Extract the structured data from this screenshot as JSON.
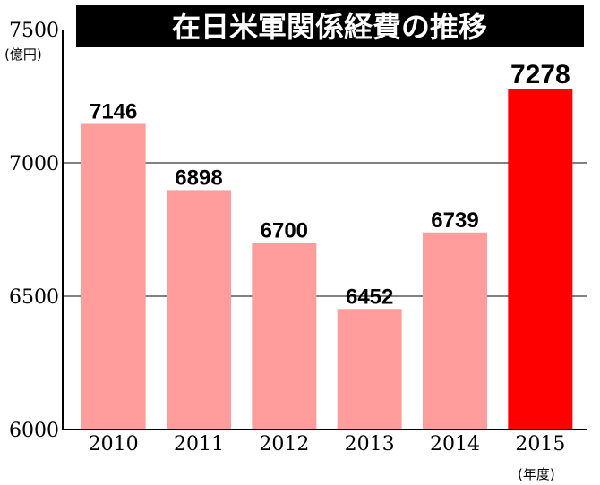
{
  "chart_data": {
    "type": "bar",
    "title": "在日米軍関係経費の推移",
    "ylabel": "(億円)",
    "xlabel": "(年度)",
    "categories": [
      "2010",
      "2011",
      "2012",
      "2013",
      "2014",
      "2015"
    ],
    "values": [
      7146,
      6898,
      6700,
      6452,
      6739,
      7278
    ],
    "ylim": [
      6000,
      7500
    ],
    "yticks": [
      "6000",
      "6500",
      "7000",
      "7500"
    ],
    "grid": true,
    "colors": {
      "bar": "#ff9d9d",
      "highlight_bar": "#ff0000",
      "title_bg": "#000000",
      "title_text": "#ffffff",
      "axis": "#000000"
    },
    "highlight_index": 5
  }
}
